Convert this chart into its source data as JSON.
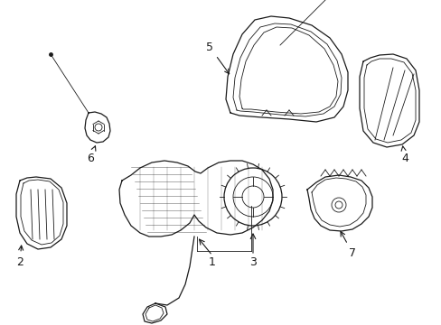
{
  "background_color": "#ffffff",
  "line_color": "#1a1a1a",
  "fig_width": 4.89,
  "fig_height": 3.6,
  "dpi": 100,
  "image_data": "target_embedded"
}
